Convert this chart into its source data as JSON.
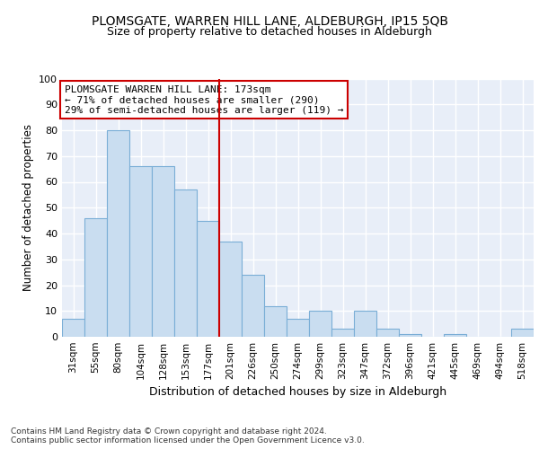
{
  "title": "PLOMSGATE, WARREN HILL LANE, ALDEBURGH, IP15 5QB",
  "subtitle": "Size of property relative to detached houses in Aldeburgh",
  "xlabel": "Distribution of detached houses by size in Aldeburgh",
  "ylabel": "Number of detached properties",
  "bar_color": "#c9ddf0",
  "bar_edge_color": "#7aaed6",
  "categories": [
    "31sqm",
    "55sqm",
    "80sqm",
    "104sqm",
    "128sqm",
    "153sqm",
    "177sqm",
    "201sqm",
    "226sqm",
    "250sqm",
    "274sqm",
    "299sqm",
    "323sqm",
    "347sqm",
    "372sqm",
    "396sqm",
    "421sqm",
    "445sqm",
    "469sqm",
    "494sqm",
    "518sqm"
  ],
  "values": [
    7,
    46,
    80,
    66,
    66,
    57,
    45,
    37,
    24,
    12,
    7,
    10,
    3,
    10,
    3,
    1,
    0,
    1,
    0,
    0,
    3
  ],
  "vline_index": 6,
  "vline_color": "#cc0000",
  "annotation_text": "PLOMSGATE WARREN HILL LANE: 173sqm\n← 71% of detached houses are smaller (290)\n29% of semi-detached houses are larger (119) →",
  "annotation_box_color": "#ffffff",
  "annotation_box_edge": "#cc0000",
  "ylim": [
    0,
    100
  ],
  "yticks": [
    0,
    10,
    20,
    30,
    40,
    50,
    60,
    70,
    80,
    90,
    100
  ],
  "footer": "Contains HM Land Registry data © Crown copyright and database right 2024.\nContains public sector information licensed under the Open Government Licence v3.0.",
  "background_color": "#e8eef8",
  "grid_color": "#ffffff"
}
